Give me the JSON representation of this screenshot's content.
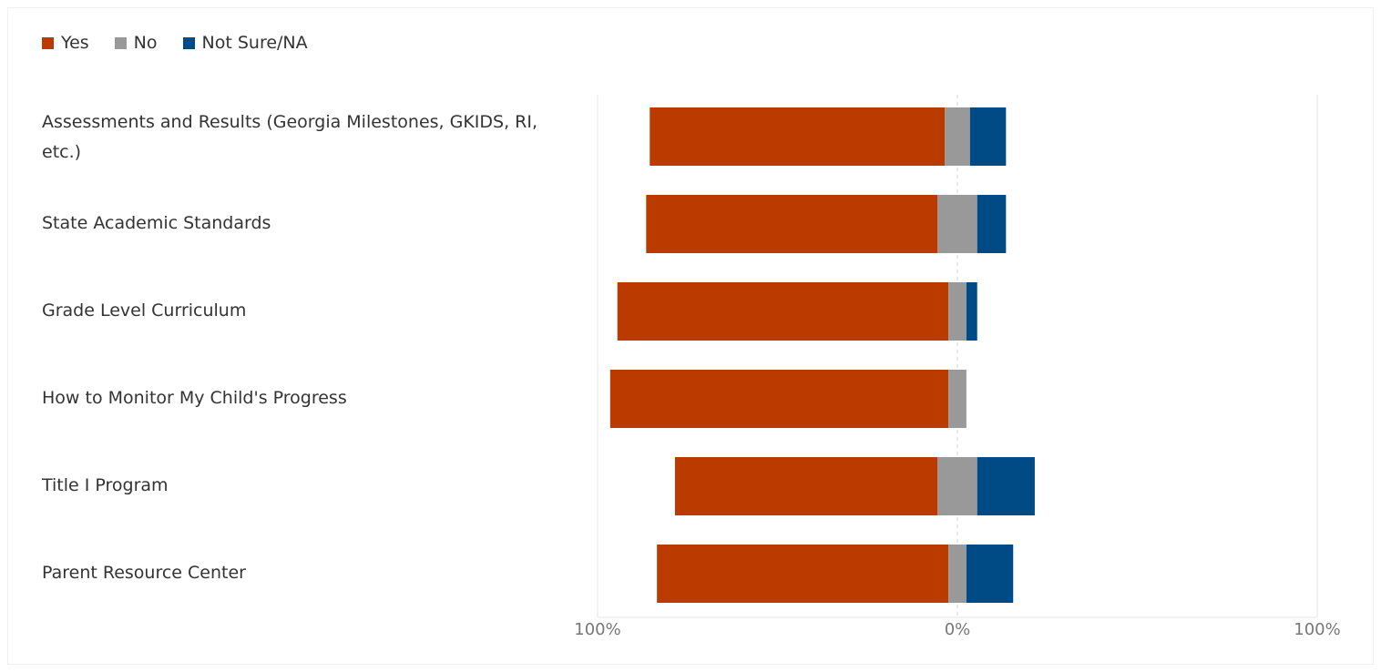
{
  "chart_data": {
    "type": "bar",
    "orientation": "horizontal",
    "stacking": "diverging",
    "categories": [
      "Assessments and Results (Georgia Milestones, GKIDS, RI, etc.)",
      "State Academic Standards",
      "Grade Level Curriculum",
      "How to Monitor My Child's Progress",
      "Title I Program",
      "Parent Resource Center"
    ],
    "series": [
      {
        "name": "Yes",
        "color": "#bb3a00",
        "values": [
          82,
          81,
          92,
          94,
          73,
          81
        ]
      },
      {
        "name": "No",
        "color": "#999999",
        "values": [
          7,
          11,
          5,
          5,
          11,
          5
        ]
      },
      {
        "name": "Not Sure/NA",
        "color": "#004a86",
        "values": [
          10,
          8,
          3,
          0,
          16,
          13
        ]
      }
    ],
    "x_ticks": [
      "100%",
      "0%",
      "100%"
    ],
    "xlim": [
      -100,
      100
    ],
    "grid": true,
    "legend_position": "top-left"
  }
}
